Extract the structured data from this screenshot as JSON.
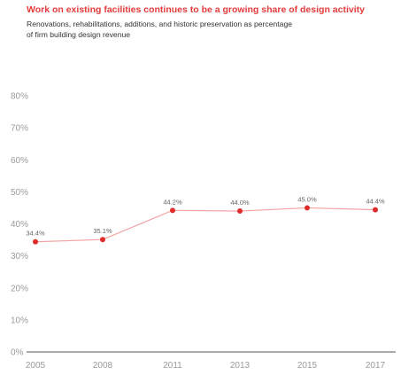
{
  "chart_data": {
    "type": "line",
    "title": "Work on existing facilities continues to be a growing share of design activity",
    "subtitle": "Renovations, rehabilitations, additions, and historic preservation as percentage of firm building design revenue",
    "xlabel": "",
    "ylabel": "",
    "categories": [
      "2005",
      "2008",
      "2011",
      "2013",
      "2015",
      "2017"
    ],
    "series": [
      {
        "values": [
          34.4,
          35.1,
          44.2,
          44.0,
          45.0,
          44.4
        ],
        "labels": [
          "34.4%",
          "35.1%",
          "44.2%",
          "44.0%",
          "45.0%",
          "44.4%"
        ]
      }
    ],
    "ylim": [
      0,
      80
    ],
    "y_ticks": [
      "0%",
      "10%",
      "20%",
      "30%",
      "40%",
      "50%",
      "60%",
      "70%",
      "80%"
    ],
    "grid": false,
    "colors": {
      "line": "#f4a3a3",
      "marker": "#e02b2b",
      "title": "#e63b3b",
      "axis": "#555555"
    }
  }
}
